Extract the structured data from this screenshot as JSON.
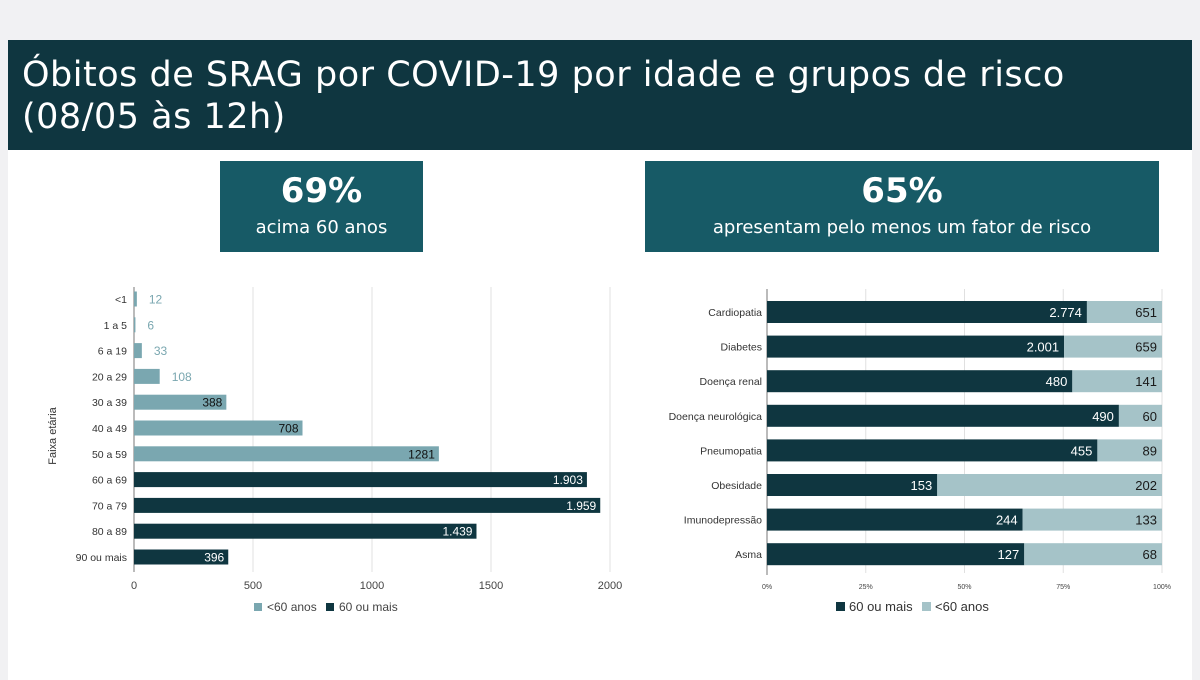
{
  "header": {
    "title_line1": "Óbitos de SRAG por COVID-19 por idade e grupos de risco",
    "title_line2": "(08/05 às 12h)"
  },
  "kpis": [
    {
      "value": "69%",
      "label": "acima 60 anos"
    },
    {
      "value": "65%",
      "label": "apresentam pelo menos um fator de risco"
    }
  ],
  "colors": {
    "header": "#0f3640",
    "kpi": "#175a66",
    "dark": "#0f3640",
    "light_left": "#7aa7b0",
    "light_right": "#a5c3c8"
  },
  "chart_data": [
    {
      "type": "bar",
      "orientation": "horizontal",
      "ylabel": "Faixa etária",
      "xlim": [
        0,
        2000
      ],
      "xticks": [
        "0",
        "500",
        "1000",
        "1500",
        "2000"
      ],
      "categories": [
        "<1",
        "1 a 5",
        "6 a 19",
        "20 a 29",
        "30 a 39",
        "40 a 49",
        "50 a 59",
        "60 a 69",
        "70 a 79",
        "80 a 89",
        "90 ou mais"
      ],
      "values": [
        12,
        6,
        33,
        108,
        388,
        708,
        1281,
        1903,
        1959,
        1439,
        396
      ],
      "labels": [
        "12",
        "6",
        "33",
        "108",
        "388",
        "708",
        "1281",
        "1.903",
        "1.959",
        "1.439",
        "396"
      ],
      "groups": [
        "<60 anos",
        "<60 anos",
        "<60 anos",
        "<60 anos",
        "<60 anos",
        "<60 anos",
        "<60 anos",
        "60 ou mais",
        "60 ou mais",
        "60 ou mais",
        "60 ou mais"
      ],
      "legend": [
        "<60 anos",
        "60 ou mais"
      ],
      "legend_position": "bottom",
      "grid": true
    },
    {
      "type": "bar",
      "orientation": "horizontal",
      "stacked": "percent",
      "xticks": [
        "0%",
        "25%",
        "50%",
        "75%",
        "100%"
      ],
      "categories": [
        "Cardiopatia",
        "Diabetes",
        "Doença renal",
        "Doença neurológica",
        "Pneumopatia",
        "Obesidade",
        "Imunodepressão",
        "Asma"
      ],
      "series": [
        {
          "name": "60 ou mais",
          "values": [
            2774,
            2001,
            480,
            490,
            455,
            153,
            244,
            127
          ],
          "labels": [
            "2.774",
            "2.001",
            "480",
            "490",
            "455",
            "153",
            "244",
            "127"
          ]
        },
        {
          "name": "<60 anos",
          "values": [
            651,
            659,
            141,
            60,
            89,
            202,
            133,
            68
          ],
          "labels": [
            "651",
            "659",
            "141",
            "60",
            "89",
            "202",
            "133",
            "68"
          ]
        }
      ],
      "legend_position": "bottom",
      "grid": true
    }
  ]
}
